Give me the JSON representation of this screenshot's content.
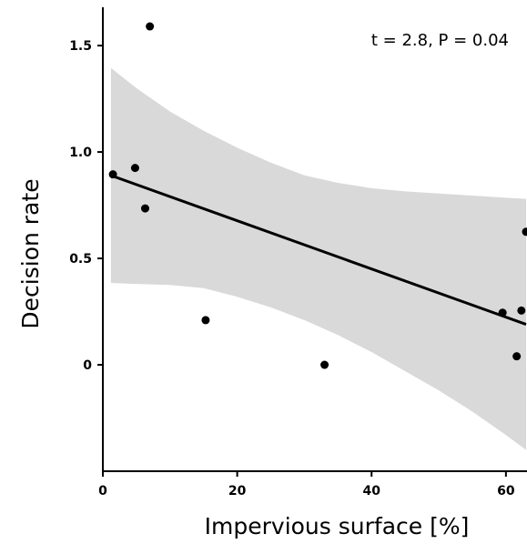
{
  "chart_data": {
    "type": "scatter",
    "title": "",
    "xlabel": "Impervious surface [%]",
    "ylabel": "Decision rate",
    "annotation": "t = 2.8, P = 0.04",
    "xlim": [
      0,
      63
    ],
    "ylim": [
      -0.5,
      1.68
    ],
    "xticks": [
      {
        "value": 0,
        "label": "0"
      },
      {
        "value": 20,
        "label": "20"
      },
      {
        "value": 40,
        "label": "40"
      },
      {
        "value": 60,
        "label": "60"
      }
    ],
    "yticks": [
      {
        "value": 0,
        "label": "0"
      },
      {
        "value": 0.5,
        "label": "0.5"
      },
      {
        "value": 1.0,
        "label": "1.0"
      },
      {
        "value": 1.5,
        "label": "1.5"
      }
    ],
    "grid": false,
    "points": {
      "x": [
        1.5,
        4.8,
        6.3,
        7.0,
        15.3,
        33.0,
        59.5,
        61.6,
        62.3,
        63.0
      ],
      "y": [
        0.895,
        0.925,
        0.735,
        1.59,
        0.21,
        0.0,
        0.245,
        0.04,
        0.255,
        0.625
      ]
    },
    "fit_line": {
      "x": [
        1.2,
        63.0
      ],
      "y": [
        0.89,
        0.19
      ]
    },
    "confidence_band": {
      "x": [
        1.2,
        5,
        10,
        15,
        20,
        25,
        30,
        35,
        40,
        45,
        50,
        55,
        60,
        63
      ],
      "upper": [
        1.395,
        1.3,
        1.19,
        1.1,
        1.02,
        0.95,
        0.89,
        0.855,
        0.83,
        0.815,
        0.805,
        0.795,
        0.785,
        0.78
      ],
      "lower": [
        0.385,
        0.38,
        0.375,
        0.36,
        0.32,
        0.27,
        0.21,
        0.14,
        0.06,
        -0.03,
        -0.12,
        -0.22,
        -0.33,
        -0.4
      ]
    },
    "colors": {
      "band": "#d9d9d9",
      "line": "#000000",
      "points": "#000000",
      "axes": "#000000"
    }
  }
}
